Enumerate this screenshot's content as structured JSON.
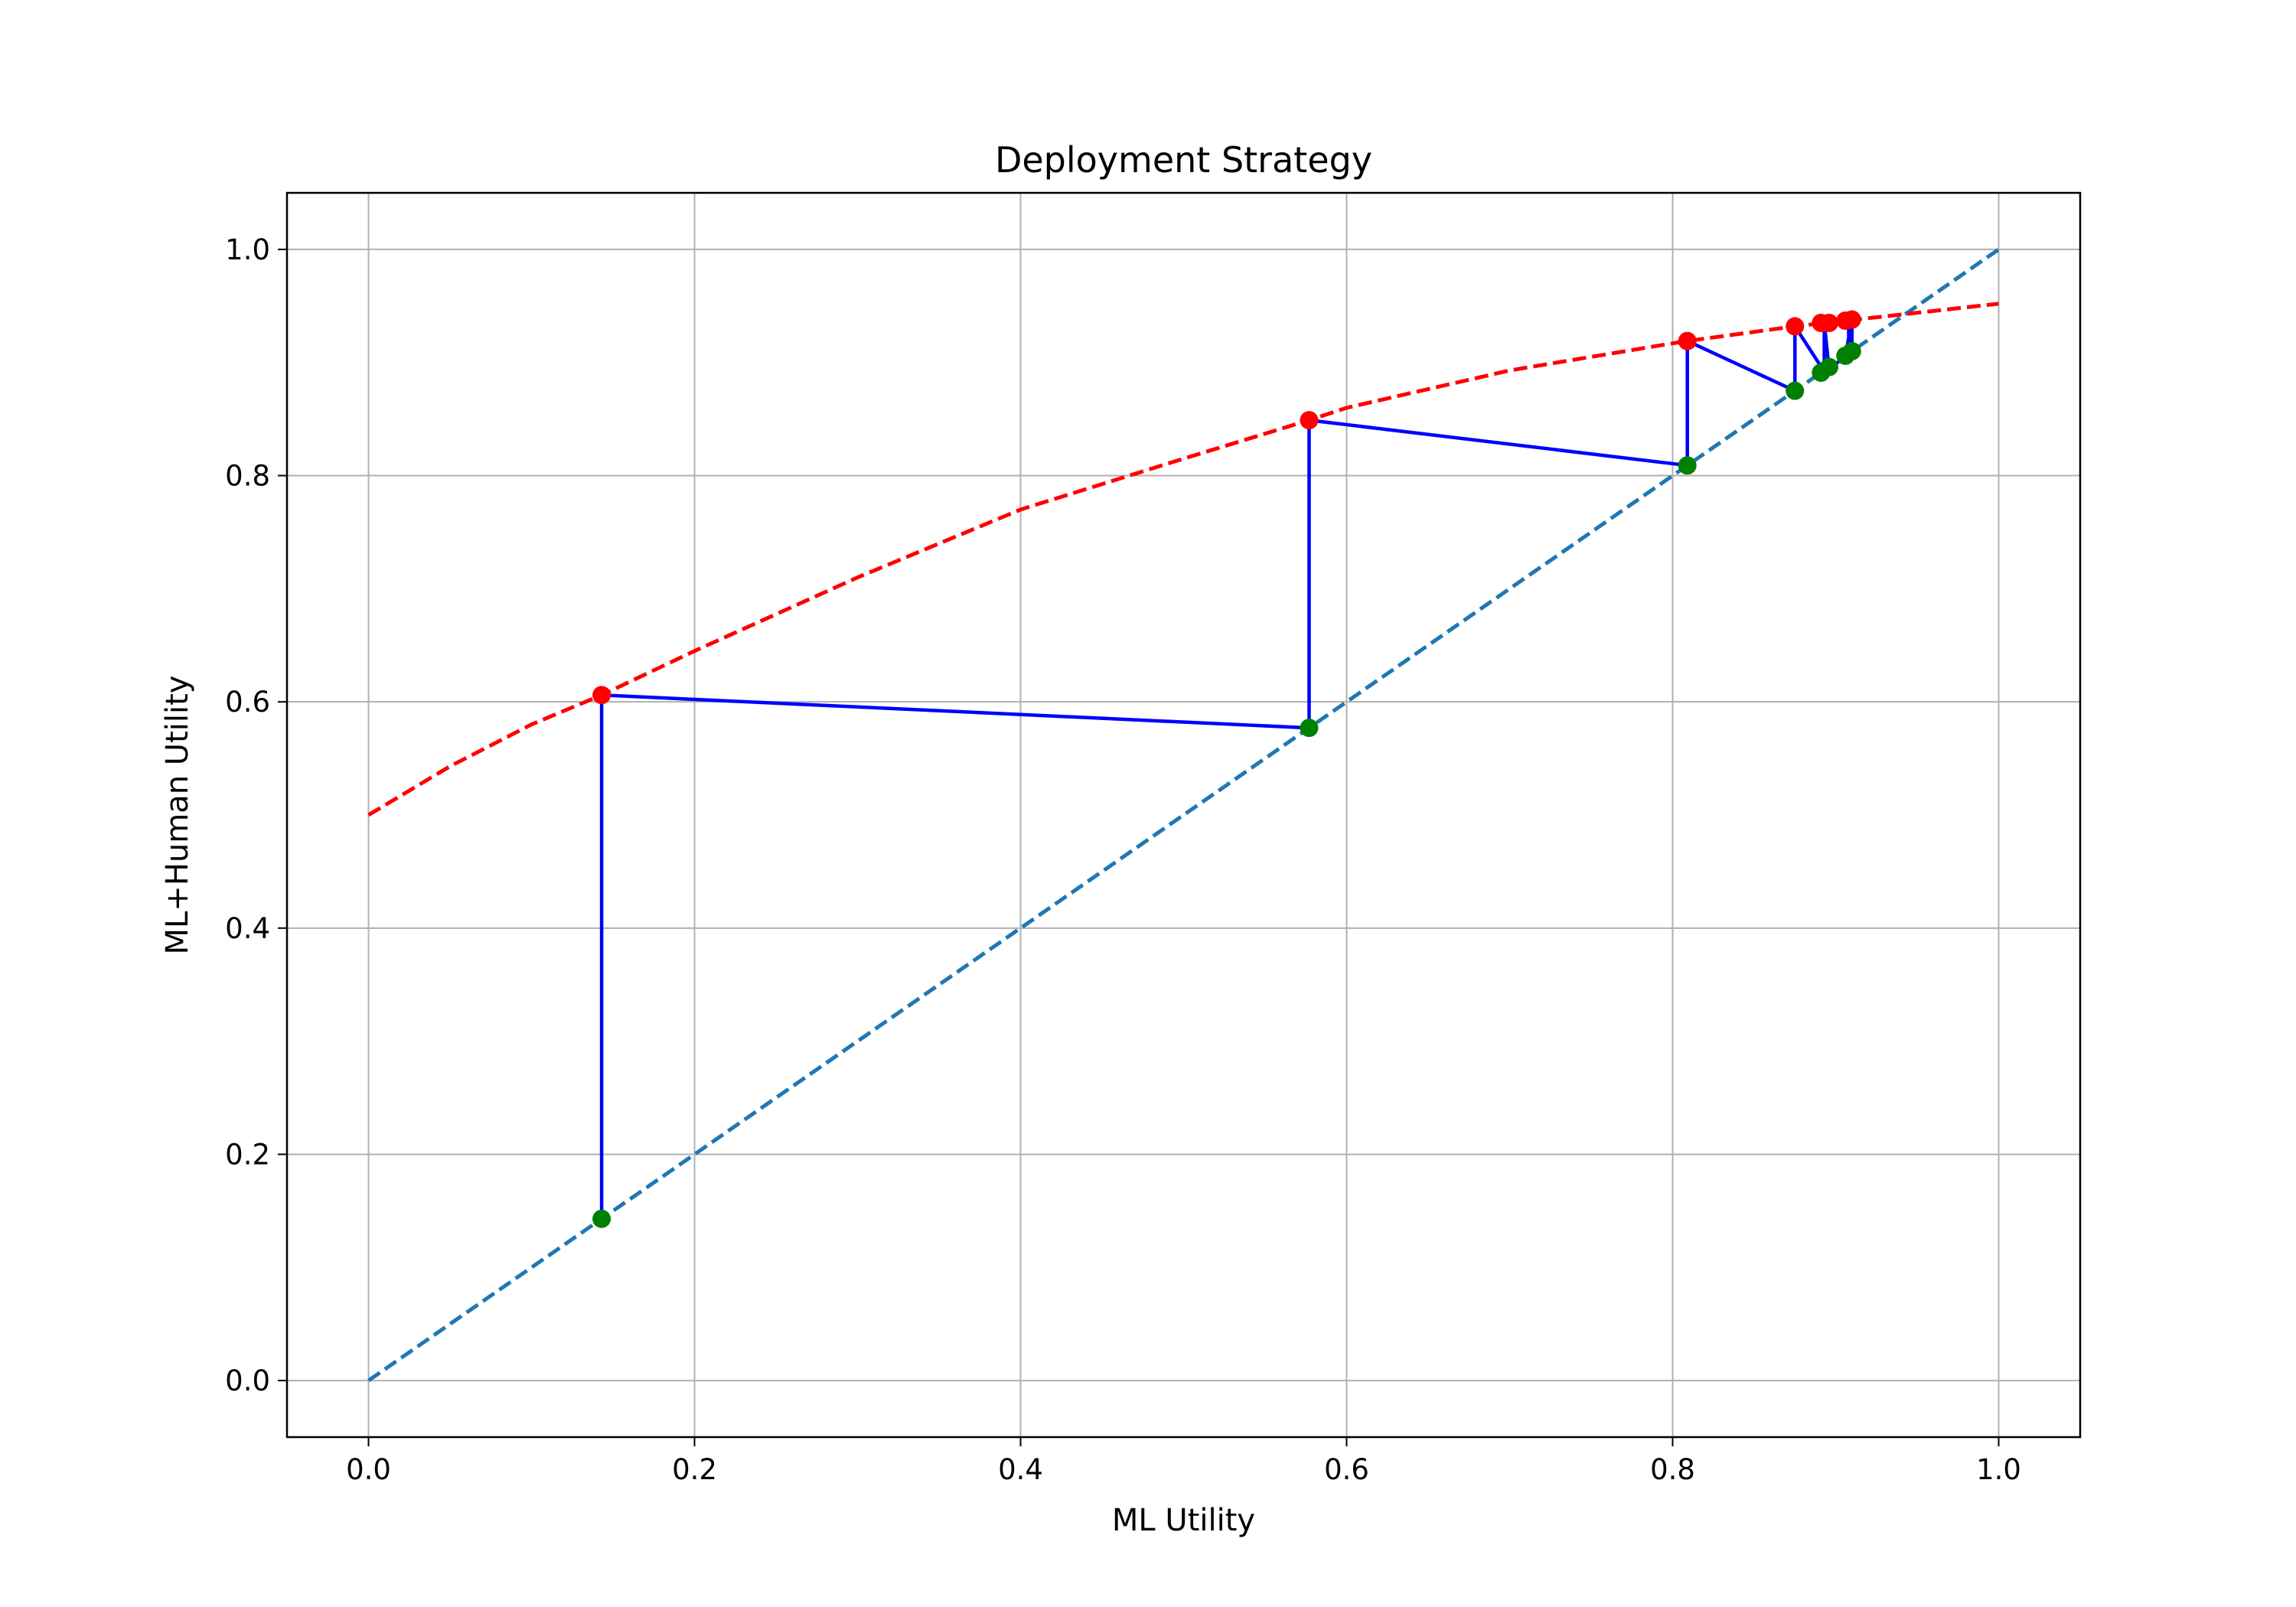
{
  "chart_data": {
    "type": "line",
    "title": "Deployment Strategy",
    "xlabel": "ML Utility",
    "ylabel": "ML+Human Utility",
    "xlim": [
      -0.05,
      1.05
    ],
    "ylim": [
      -0.05,
      1.05
    ],
    "xticks": [
      0.0,
      0.2,
      0.4,
      0.6,
      0.8,
      1.0
    ],
    "yticks": [
      0.0,
      0.2,
      0.4,
      0.6,
      0.8,
      1.0
    ],
    "xtick_labels": [
      "0.0",
      "0.2",
      "0.4",
      "0.6",
      "0.8",
      "1.0"
    ],
    "ytick_labels": [
      "0.0",
      "0.2",
      "0.4",
      "0.6",
      "0.8",
      "1.0"
    ],
    "grid": true,
    "legend": "none",
    "series": [
      {
        "kind": "dashed-line",
        "color": "#1f77b4",
        "x": [
          0.0,
          1.0
        ],
        "y": [
          0.0,
          1.0
        ]
      },
      {
        "kind": "dashed-curve",
        "color": "#ff0000",
        "x": [
          0.0,
          0.05,
          0.1,
          0.143,
          0.2,
          0.3,
          0.4,
          0.5,
          0.577,
          0.6,
          0.7,
          0.8,
          0.809,
          0.875,
          0.9,
          1.0
        ],
        "y": [
          0.5,
          0.543,
          0.58,
          0.606,
          0.645,
          0.71,
          0.77,
          0.815,
          0.849,
          0.86,
          0.893,
          0.917,
          0.919,
          0.932,
          0.936,
          0.952
        ]
      },
      {
        "kind": "solid-path",
        "color": "#0000ff",
        "x": [
          0.143,
          0.143,
          0.577,
          0.577,
          0.809,
          0.809,
          0.875,
          0.875,
          0.893,
          0.893,
          0.893,
          0.896,
          0.908,
          0.908,
          0.91,
          0.91,
          0.906
        ],
        "y": [
          0.143,
          0.606,
          0.577,
          0.849,
          0.809,
          0.919,
          0.875,
          0.932,
          0.892,
          0.935,
          0.935,
          0.894,
          0.908,
          0.938,
          0.912,
          0.938,
          0.906
        ]
      },
      {
        "kind": "markers",
        "color": "#ff0000",
        "x": [
          0.143,
          0.577,
          0.809,
          0.875,
          0.891,
          0.896,
          0.906,
          0.91
        ],
        "y": [
          0.606,
          0.849,
          0.919,
          0.932,
          0.935,
          0.935,
          0.937,
          0.938
        ]
      },
      {
        "kind": "markers",
        "color": "#008000",
        "x": [
          0.143,
          0.577,
          0.809,
          0.875,
          0.891,
          0.896,
          0.906,
          0.91
        ],
        "y": [
          0.143,
          0.577,
          0.809,
          0.875,
          0.891,
          0.896,
          0.906,
          0.91
        ]
      }
    ]
  }
}
